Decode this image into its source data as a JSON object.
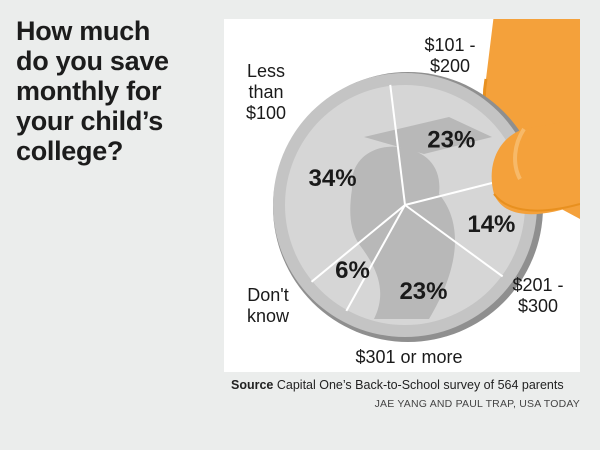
{
  "chart_data": {
    "type": "pie",
    "title": "How much do you save monthly for your child’s college?",
    "title_lines": [
      "How much",
      "do you save",
      "monthly for",
      "your child’s",
      "college?"
    ],
    "categories": [
      "$101 - $200",
      "$201 - $300",
      "$301 or more",
      "Don't know",
      "Less than $100"
    ],
    "values": [
      23,
      14,
      23,
      6,
      34
    ],
    "value_labels": [
      "23%",
      "14%",
      "23%",
      "6%",
      "34%"
    ],
    "category_label_lines": [
      [
        "$101 -",
        "$200"
      ],
      [
        "$201 -",
        "$300"
      ],
      [
        "$301 or more"
      ],
      [
        "Don't",
        "know"
      ],
      [
        "Less",
        "than",
        "$100"
      ]
    ]
  },
  "source": {
    "label": "Source",
    "text": "Capital One’s Back-to-School survey of 564 parents"
  },
  "credit": "JAE YANG AND PAUL TRAP, USA TODAY",
  "colors": {
    "background": "#ebedec",
    "panel": "#ffffff",
    "coin_face": "#d6d6d6",
    "coin_rim": "#c4c4c4",
    "coin_edge": "#8f8f8f",
    "emboss": "#b0b0b0",
    "finger": "#f4a13b",
    "finger_dark": "#e8901f",
    "divider": "#ffffff",
    "text": "#1a1a1a"
  }
}
